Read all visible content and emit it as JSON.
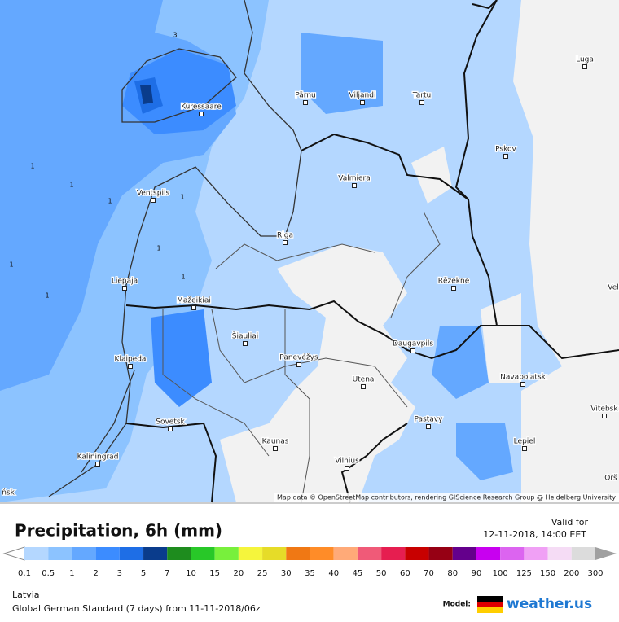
{
  "map": {
    "cities": [
      "Kuressaare",
      "Pärnu",
      "Viljandi",
      "Tartu",
      "Luga",
      "Pskov",
      "Valmiera",
      "Ventspils",
      "Riga",
      "Liepaja",
      "Rēzekne",
      "Mažeikiai",
      "Šiauliai",
      "Panevėžys",
      "Daugavpils",
      "Klaipeda",
      "Utena",
      "Navapolatsk",
      "Vitebsk",
      "Sovetsk",
      "Pastavy",
      "Kaunas",
      "Lepiel",
      "Kaliningrad",
      "Vilnius",
      "Vel",
      "Orš",
      "ńsk"
    ],
    "contour_labels": [
      "3",
      "1",
      "1",
      "1",
      "1",
      "1",
      "1",
      "1",
      "1"
    ],
    "attribution": "Map data © OpenStreetMap contributors, rendering GIScience Research Group @ Heidelberg University"
  },
  "legend": {
    "title": "Precipitation, 6h (mm)",
    "valid_for": "Valid for",
    "valid_time": "12-11-2018, 14:00 EET",
    "ticks": [
      0.1,
      0.5,
      1,
      2,
      3,
      5,
      7,
      10,
      15,
      20,
      25,
      30,
      35,
      40,
      45,
      50,
      60,
      70,
      80,
      90,
      100,
      125,
      150,
      200,
      300
    ],
    "colors": [
      "#b4d7ff",
      "#8cc3ff",
      "#64a8ff",
      "#3c8cff",
      "#1e6ee6",
      "#0a3c8c",
      "#1e8c1e",
      "#28c828",
      "#78f03c",
      "#f5f53c",
      "#e6dc28",
      "#f07814",
      "#ff8c28",
      "#ffaa78",
      "#f05a78",
      "#e61e50",
      "#c80000",
      "#960014",
      "#64008c",
      "#c800f0",
      "#dc64f0",
      "#f0a0f5",
      "#f5dcf5",
      "#dcdcdc"
    ],
    "below_color": "#ffffff",
    "above_color": "#a0a0a0"
  },
  "footer": {
    "region": "Latvia",
    "model": "Global German Standard (7 days) from 11-11-2018/06z",
    "model_label": "Model:",
    "brand": "weather.us"
  }
}
